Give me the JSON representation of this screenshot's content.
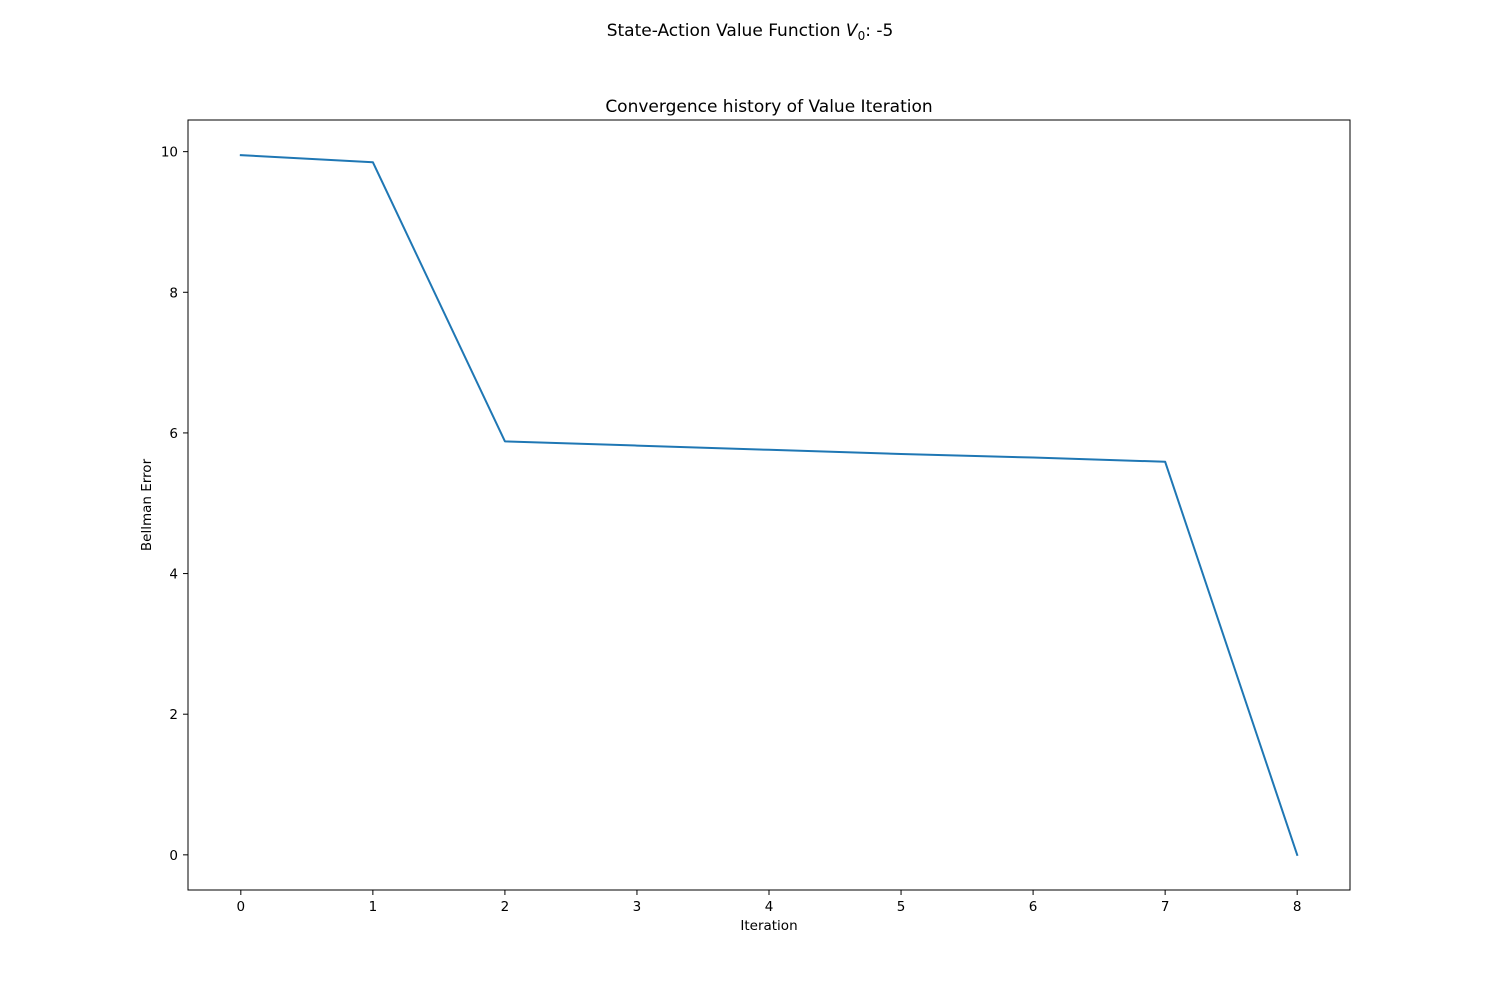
{
  "figure": {
    "suptitle_prefix": "State-Action Value Function ",
    "suptitle_var": "V",
    "suptitle_sub": "0",
    "suptitle_suffix": ": -5"
  },
  "chart_data": {
    "type": "line",
    "title": "Convergence history of Value Iteration",
    "xlabel": "Iteration",
    "ylabel": "Bellman Error",
    "x": [
      0,
      1,
      2,
      3,
      4,
      5,
      6,
      7,
      8
    ],
    "series": [
      {
        "values": [
          9.95,
          9.85,
          5.88,
          5.82,
          5.76,
          5.7,
          5.65,
          5.59,
          0.0
        ],
        "color": "#1f77b4"
      }
    ],
    "xlim": [
      -0.4,
      8.4
    ],
    "ylim": [
      -0.5,
      10.45
    ],
    "xticks": [
      0,
      1,
      2,
      3,
      4,
      5,
      6,
      7,
      8
    ],
    "yticks": [
      0,
      2,
      4,
      6,
      8,
      10
    ],
    "grid": false,
    "legend": "none"
  }
}
